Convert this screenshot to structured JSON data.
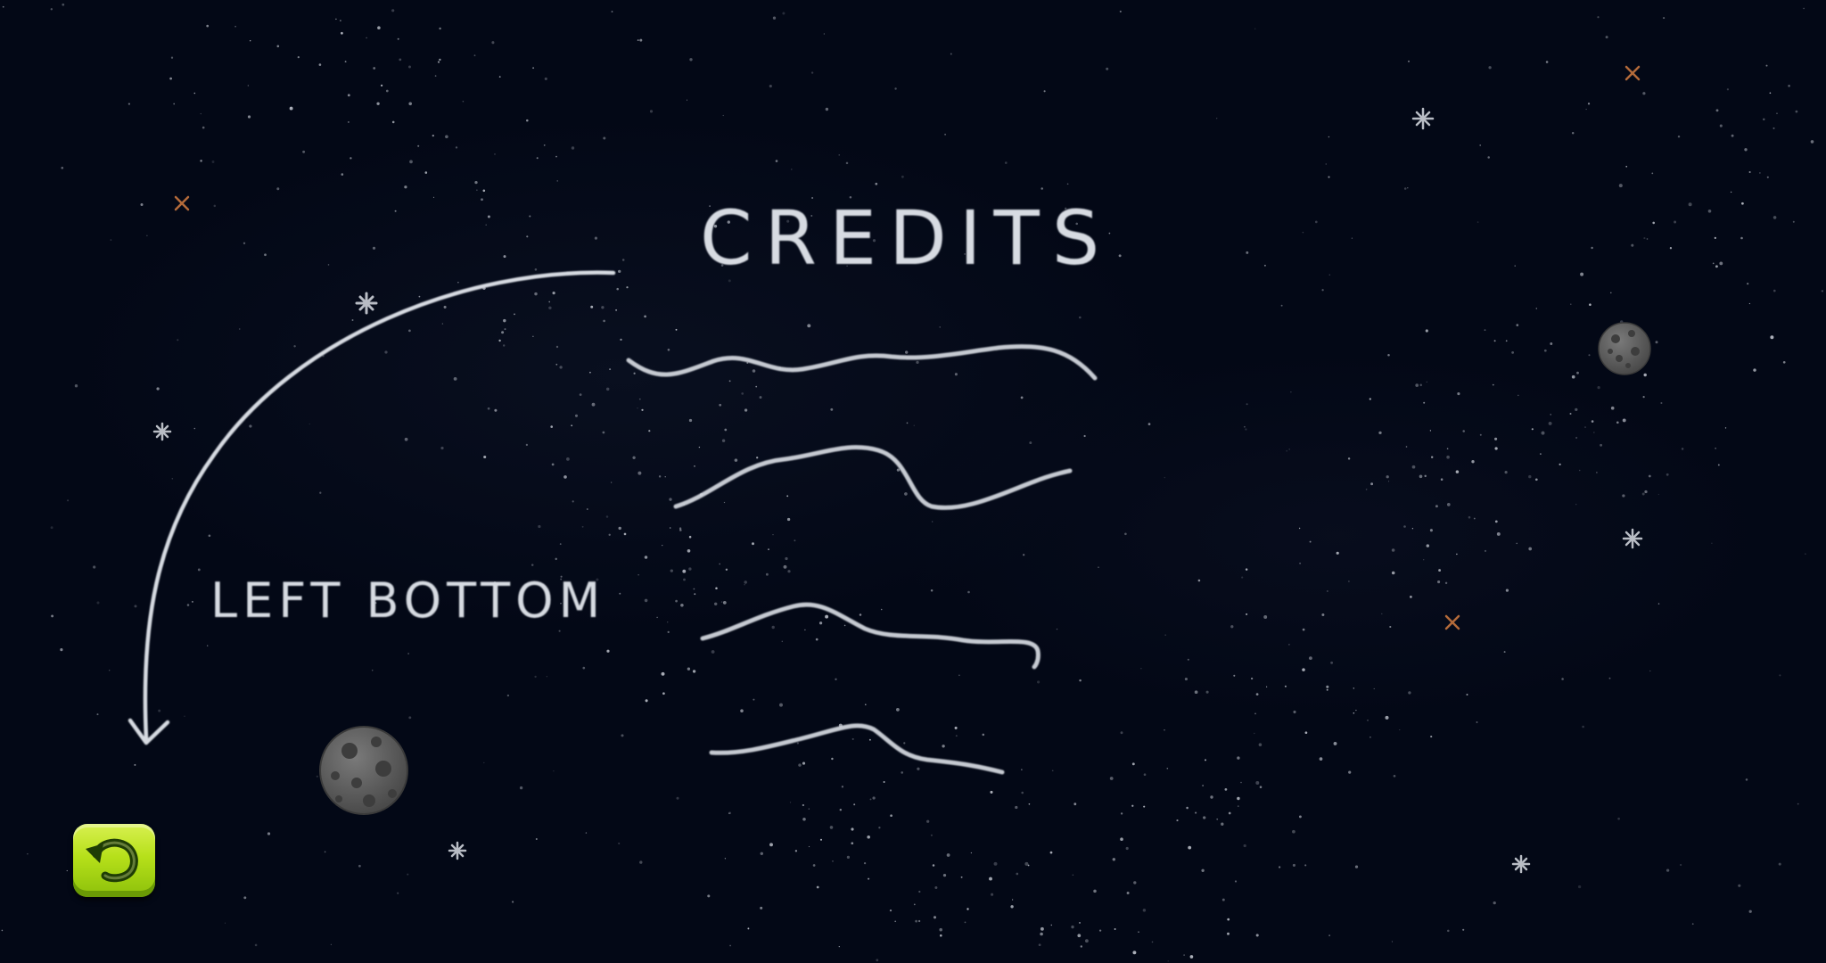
{
  "screen": {
    "title": "CREDITS",
    "hint_label": "LEFT BOTTOM"
  },
  "back_button": {
    "icon": "undo-arrow-icon"
  },
  "colors": {
    "background": "#030816",
    "chalk": "#d7dbe2",
    "button_green": "#b6e01a",
    "moon_gray": "#6a6a6a"
  }
}
